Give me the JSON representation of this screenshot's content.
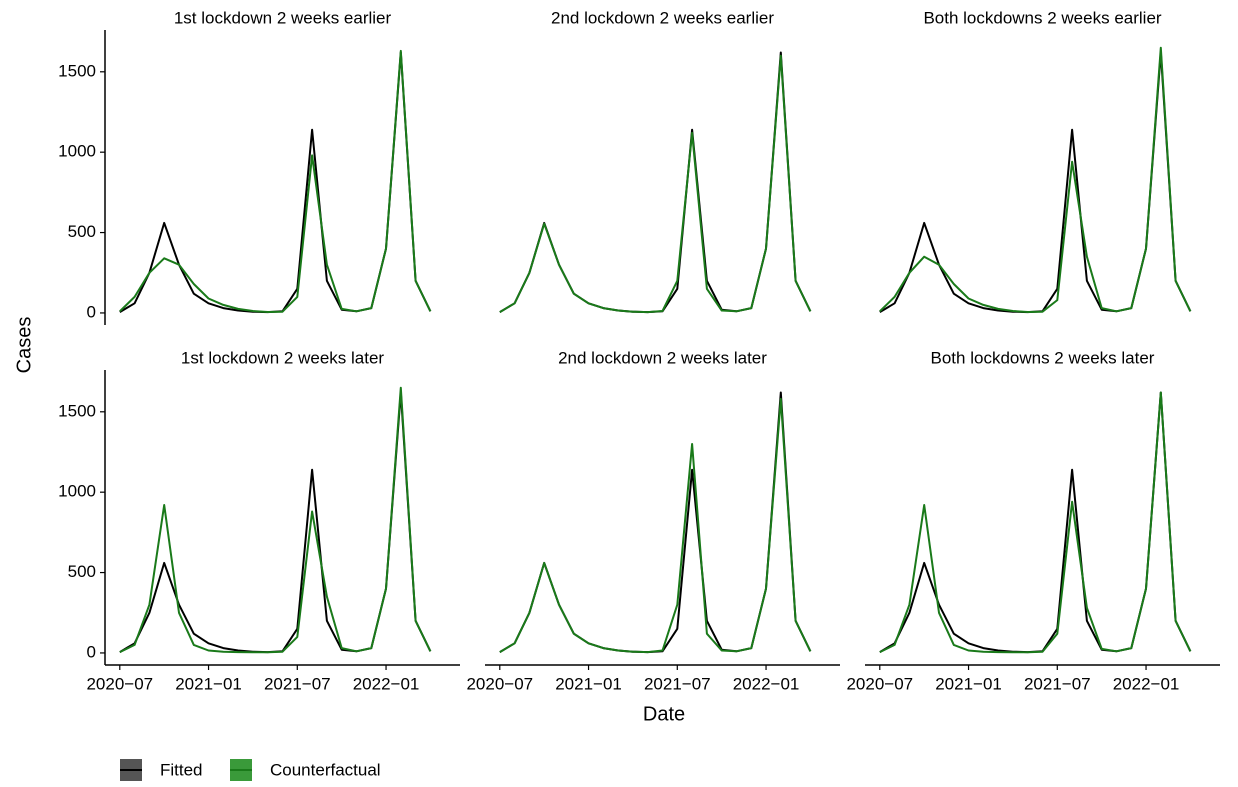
{
  "y_label": "Cases",
  "x_label": "Date",
  "chart_data": [
    {
      "type": "line",
      "title": "1st lockdown 2 weeks earlier",
      "x": [
        "2020-07",
        "2020-08",
        "2020-09",
        "2020-10",
        "2020-11",
        "2020-12",
        "2021-01",
        "2021-02",
        "2021-03",
        "2021-04",
        "2021-05",
        "2021-06",
        "2021-07",
        "2021-08",
        "2021-09",
        "2021-10",
        "2021-11",
        "2021-12",
        "2022-01",
        "2022-02",
        "2022-03",
        "2022-04"
      ],
      "series": [
        {
          "name": "Fitted",
          "color": "#000000",
          "values": [
            5,
            60,
            250,
            560,
            300,
            120,
            60,
            30,
            15,
            8,
            5,
            10,
            150,
            1140,
            200,
            20,
            10,
            30,
            400,
            1620,
            200,
            10
          ]
        },
        {
          "name": "Counterfactual",
          "color": "#1a7a1a",
          "values": [
            10,
            100,
            250,
            340,
            300,
            180,
            90,
            50,
            25,
            12,
            6,
            8,
            100,
            980,
            300,
            25,
            10,
            30,
            400,
            1630,
            200,
            10
          ]
        }
      ],
      "xlim": [
        "2020-06",
        "2022-06"
      ],
      "ylim": [
        -75,
        1760
      ],
      "yticks": [
        0,
        500,
        1000,
        1500
      ]
    },
    {
      "type": "line",
      "title": "2nd lockdown 2 weeks earlier",
      "x": [
        "2020-07",
        "2020-08",
        "2020-09",
        "2020-10",
        "2020-11",
        "2020-12",
        "2021-01",
        "2021-02",
        "2021-03",
        "2021-04",
        "2021-05",
        "2021-06",
        "2021-07",
        "2021-08",
        "2021-09",
        "2021-10",
        "2021-11",
        "2021-12",
        "2022-01",
        "2022-02",
        "2022-03",
        "2022-04"
      ],
      "series": [
        {
          "name": "Fitted",
          "color": "#000000",
          "values": [
            5,
            60,
            250,
            560,
            300,
            120,
            60,
            30,
            15,
            8,
            5,
            10,
            150,
            1140,
            200,
            20,
            10,
            30,
            400,
            1620,
            200,
            10
          ]
        },
        {
          "name": "Counterfactual",
          "color": "#1a7a1a",
          "values": [
            5,
            60,
            250,
            555,
            300,
            120,
            60,
            30,
            15,
            8,
            5,
            12,
            200,
            1120,
            150,
            15,
            10,
            30,
            400,
            1600,
            200,
            10
          ]
        }
      ],
      "xlim": [
        "2020-06",
        "2022-06"
      ],
      "ylim": [
        -75,
        1760
      ]
    },
    {
      "type": "line",
      "title": "Both lockdowns 2 weeks earlier",
      "x": [
        "2020-07",
        "2020-08",
        "2020-09",
        "2020-10",
        "2020-11",
        "2020-12",
        "2021-01",
        "2021-02",
        "2021-03",
        "2021-04",
        "2021-05",
        "2021-06",
        "2021-07",
        "2021-08",
        "2021-09",
        "2021-10",
        "2021-11",
        "2021-12",
        "2022-01",
        "2022-02",
        "2022-03",
        "2022-04"
      ],
      "series": [
        {
          "name": "Fitted",
          "color": "#000000",
          "values": [
            5,
            60,
            250,
            560,
            300,
            120,
            60,
            30,
            15,
            8,
            5,
            10,
            150,
            1140,
            200,
            20,
            10,
            30,
            400,
            1620,
            200,
            10
          ]
        },
        {
          "name": "Counterfactual",
          "color": "#1a7a1a",
          "values": [
            10,
            100,
            250,
            350,
            300,
            180,
            90,
            50,
            25,
            12,
            6,
            8,
            80,
            940,
            350,
            30,
            10,
            30,
            400,
            1650,
            200,
            10
          ]
        }
      ],
      "xlim": [
        "2020-06",
        "2022-06"
      ],
      "ylim": [
        -75,
        1760
      ]
    },
    {
      "type": "line",
      "title": "1st lockdown 2 weeks later",
      "x": [
        "2020-07",
        "2020-08",
        "2020-09",
        "2020-10",
        "2020-11",
        "2020-12",
        "2021-01",
        "2021-02",
        "2021-03",
        "2021-04",
        "2021-05",
        "2021-06",
        "2021-07",
        "2021-08",
        "2021-09",
        "2021-10",
        "2021-11",
        "2021-12",
        "2022-01",
        "2022-02",
        "2022-03",
        "2022-04"
      ],
      "series": [
        {
          "name": "Fitted",
          "color": "#000000",
          "values": [
            5,
            60,
            250,
            560,
            300,
            120,
            60,
            30,
            15,
            8,
            5,
            10,
            150,
            1140,
            200,
            20,
            10,
            30,
            400,
            1620,
            200,
            10
          ]
        },
        {
          "name": "Counterfactual",
          "color": "#1a7a1a",
          "values": [
            5,
            50,
            300,
            920,
            250,
            50,
            15,
            8,
            5,
            4,
            4,
            8,
            100,
            880,
            350,
            30,
            10,
            30,
            400,
            1650,
            200,
            10
          ]
        }
      ],
      "xlim": [
        "2020-06",
        "2022-06"
      ],
      "xticks": [
        {
          "value": "2020-07",
          "label": "2020−07"
        },
        {
          "value": "2021-01",
          "label": "2021−01"
        },
        {
          "value": "2021-07",
          "label": "2021−07"
        },
        {
          "value": "2022-01",
          "label": "2022−01"
        }
      ],
      "ylim": [
        -75,
        1760
      ],
      "yticks": [
        0,
        500,
        1000,
        1500
      ]
    },
    {
      "type": "line",
      "title": "2nd lockdown 2 weeks later",
      "x": [
        "2020-07",
        "2020-08",
        "2020-09",
        "2020-10",
        "2020-11",
        "2020-12",
        "2021-01",
        "2021-02",
        "2021-03",
        "2021-04",
        "2021-05",
        "2021-06",
        "2021-07",
        "2021-08",
        "2021-09",
        "2021-10",
        "2021-11",
        "2021-12",
        "2022-01",
        "2022-02",
        "2022-03",
        "2022-04"
      ],
      "series": [
        {
          "name": "Fitted",
          "color": "#000000",
          "values": [
            5,
            60,
            250,
            560,
            300,
            120,
            60,
            30,
            15,
            8,
            5,
            10,
            150,
            1140,
            200,
            20,
            10,
            30,
            400,
            1620,
            200,
            10
          ]
        },
        {
          "name": "Counterfactual",
          "color": "#1a7a1a",
          "values": [
            5,
            60,
            250,
            560,
            300,
            120,
            60,
            30,
            15,
            8,
            5,
            15,
            300,
            1300,
            120,
            15,
            10,
            30,
            400,
            1580,
            200,
            10
          ]
        }
      ],
      "xlim": [
        "2020-06",
        "2022-06"
      ],
      "xticks": [
        {
          "value": "2020-07",
          "label": "2020−07"
        },
        {
          "value": "2021-01",
          "label": "2021−01"
        },
        {
          "value": "2021-07",
          "label": "2021−07"
        },
        {
          "value": "2022-01",
          "label": "2022−01"
        }
      ],
      "ylim": [
        -75,
        1760
      ]
    },
    {
      "type": "line",
      "title": "Both lockdowns 2 weeks later",
      "x": [
        "2020-07",
        "2020-08",
        "2020-09",
        "2020-10",
        "2020-11",
        "2020-12",
        "2021-01",
        "2021-02",
        "2021-03",
        "2021-04",
        "2021-05",
        "2021-06",
        "2021-07",
        "2021-08",
        "2021-09",
        "2021-10",
        "2021-11",
        "2021-12",
        "2022-01",
        "2022-02",
        "2022-03",
        "2022-04"
      ],
      "series": [
        {
          "name": "Fitted",
          "color": "#000000",
          "values": [
            5,
            60,
            250,
            560,
            300,
            120,
            60,
            30,
            15,
            8,
            5,
            10,
            150,
            1140,
            200,
            20,
            10,
            30,
            400,
            1620,
            200,
            10
          ]
        },
        {
          "name": "Counterfactual",
          "color": "#1a7a1a",
          "values": [
            5,
            50,
            300,
            920,
            250,
            50,
            15,
            8,
            5,
            4,
            4,
            8,
            120,
            940,
            280,
            25,
            10,
            30,
            400,
            1620,
            200,
            10
          ]
        }
      ],
      "xlim": [
        "2020-06",
        "2022-06"
      ],
      "xticks": [
        {
          "value": "2020-07",
          "label": "2020−07"
        },
        {
          "value": "2021-01",
          "label": "2021−01"
        },
        {
          "value": "2021-07",
          "label": "2021−07"
        },
        {
          "value": "2022-01",
          "label": "2022−01"
        }
      ],
      "ylim": [
        -75,
        1760
      ]
    }
  ]
}
